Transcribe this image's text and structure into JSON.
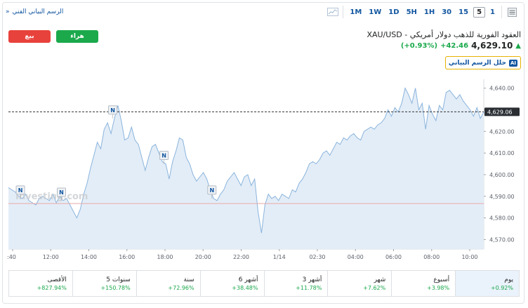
{
  "toolbar": {
    "technical_chart_link": "الرسم البياني الفني",
    "link_arrow": "»",
    "timeframes": [
      "1M",
      "1W",
      "1D",
      "5H",
      "1H",
      "30",
      "15",
      "5",
      "1"
    ],
    "active_timeframe": "5"
  },
  "header": {
    "sell_label": "بيع",
    "buy_label": "هراء",
    "title": "XAU/USD - العقود الفورية للذهب دولار أمريكي",
    "price": "4,629.10",
    "change": "+42.46",
    "change_pct": "(+0.93%)",
    "analyze_label": "حلل الرسم البياني",
    "ai_badge": "AI",
    "info_glyph": "i"
  },
  "chart_data": {
    "type": "area",
    "x_tick_labels": [
      ":40",
      "12:00",
      "14:00",
      "16:00",
      "18:00",
      "20:00",
      "22:00",
      "1/14",
      "02:30",
      "04:00",
      "06:00",
      "08:00",
      "10:00"
    ],
    "y_ticks": [
      4570,
      4580,
      4590,
      4600,
      4610,
      4620,
      4630,
      4640
    ],
    "y_tick_labels": [
      "4,570.00",
      "4,580.00",
      "4,590.00",
      "4,600.00",
      "4,610.00",
      "4,620.00",
      "4,630.00",
      "4,640.00"
    ],
    "ylim": [
      4565.6,
      4644.1
    ],
    "current_price": 4629.06,
    "current_price_label": "4,629.06",
    "previous_close": 4586.64,
    "news_marker": "N",
    "watermark": "Investing.com",
    "colors": {
      "line": "#8ab4dd",
      "fill": "#e3edf7",
      "ref": "#e8a8a8",
      "marker": "#1256a0"
    },
    "values": [
      4594,
      4593,
      4592,
      4590,
      4589,
      4591,
      4588,
      4587,
      4586,
      4589,
      4590,
      4589,
      4588,
      4591,
      4587,
      4590,
      4588,
      4589,
      4586,
      4583,
      4580,
      4584,
      4591,
      4596,
      4603,
      4609,
      4615,
      4612,
      4621,
      4624,
      4619,
      4626,
      4632,
      4625,
      4616,
      4617,
      4622,
      4616,
      4614,
      4608,
      4602,
      4608,
      4613,
      4614,
      4610,
      4606,
      4605,
      4598,
      4606,
      4611,
      4617,
      4616,
      4608,
      4605,
      4600,
      4597,
      4599,
      4601,
      4598,
      4593,
      4589,
      4588,
      4591,
      4593,
      4597,
      4599,
      4601,
      4598,
      4595,
      4599,
      4600,
      4595,
      4598,
      4583,
      4573,
      4586,
      4591,
      4589,
      4590,
      4588,
      4591,
      4590,
      4589,
      4593,
      4592,
      4596,
      4598,
      4601,
      4605,
      4606,
      4605,
      4607,
      4610,
      4611,
      4609,
      4612,
      4615,
      4614,
      4617,
      4616,
      4618,
      4619,
      4617,
      4616,
      4620,
      4621,
      4622,
      4621,
      4623,
      4624,
      4626,
      4630,
      4627,
      4631,
      4629,
      4633,
      4640,
      4637,
      4633,
      4640,
      4630,
      4633,
      4621,
      4632,
      4628,
      4625,
      4632,
      4630,
      4638,
      4639,
      4637,
      4635,
      4637,
      4634,
      4632,
      4630,
      4627,
      4631,
      4626,
      4629
    ],
    "news_at": [
      3.5,
      15.5,
      30.5,
      45.5,
      59.5
    ]
  },
  "periods": [
    {
      "label": "يوم",
      "value": "+0.92%",
      "active": true
    },
    {
      "label": "أسبوع",
      "value": "+3.98%",
      "active": false
    },
    {
      "label": "شهر",
      "value": "+7.62%",
      "active": false
    },
    {
      "label": "3 أشهر",
      "value": "+11.78%",
      "active": false
    },
    {
      "label": "6 أشهر",
      "value": "+38.48%",
      "active": false
    },
    {
      "label": "سنة",
      "value": "+72.96%",
      "active": false
    },
    {
      "label": "5 سنوات",
      "value": "+150.78%",
      "active": false
    },
    {
      "label": "الأقصى",
      "value": "+827.94%",
      "active": false
    }
  ]
}
